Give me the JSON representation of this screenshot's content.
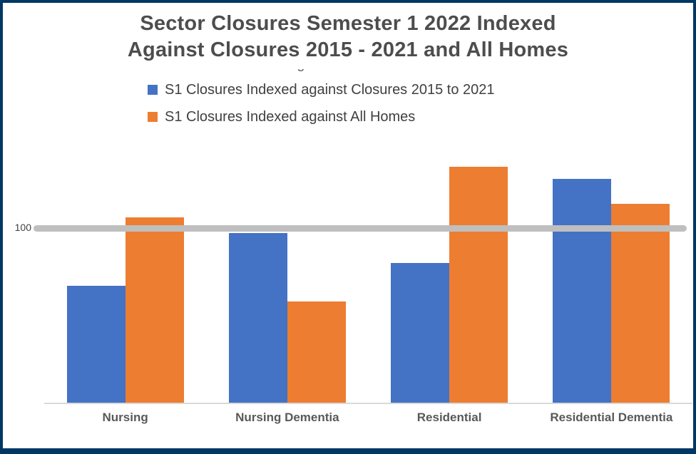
{
  "window": {
    "border_color": "#003765",
    "background": "#ffffff"
  },
  "title": {
    "line1": "Sector Closures Semester 1 2022 Indexed",
    "line2": "Against Closures 2015 - 2021 and All Homes",
    "color": "#4d4d4d"
  },
  "legend": {
    "items": [
      {
        "label": "S1 Closures Indexed against Closures 2015 to 2021",
        "color": "#4472C4"
      },
      {
        "label": "S1 Closures Indexed against All Homes",
        "color": "#ED7D31"
      }
    ]
  },
  "chart_data": {
    "type": "bar",
    "title": "Sector Closures Semester 1 2022 Indexed Against Closures 2015 - 2021 and All Homes",
    "categories": [
      "Nursing",
      "Nursing Dementia",
      "Residential",
      "Residential Dementia"
    ],
    "series": [
      {
        "key": "indexed-vs-closures-2015-2021",
        "name": "S1 Closures Indexed against Closures 2015 to 2021",
        "color": "#4472C4",
        "values": [
          67,
          97,
          80,
          128
        ]
      },
      {
        "key": "indexed-vs-all-homes",
        "name": "S1 Closures Indexed against All Homes",
        "color": "#ED7D31",
        "values": [
          106,
          58,
          135,
          114
        ]
      }
    ],
    "baseline": {
      "value": 100,
      "label": "100",
      "color": "#BFBFBF"
    },
    "ylim": [
      0,
      140
    ],
    "xlabel": "",
    "ylabel": "",
    "grid": false,
    "legend_position": "top",
    "axis_line_color": "#D9D9D9"
  }
}
